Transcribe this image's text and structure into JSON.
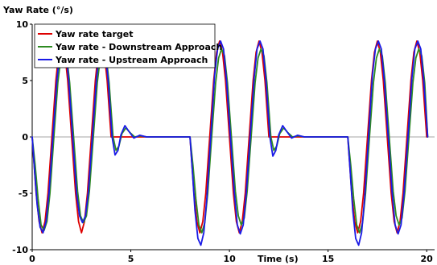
{
  "chart_data": {
    "type": "line",
    "title": "",
    "ylabel": "Yaw Rate (°/s)",
    "xlabel": "Time (s)",
    "xlim": [
      0,
      20.4
    ],
    "ylim": [
      -10,
      10
    ],
    "xticks": [
      0,
      5,
      10,
      15,
      20
    ],
    "yticks": [
      -10,
      -5,
      0,
      5,
      10
    ],
    "grid": false,
    "legend_position": "top-left",
    "series": [
      {
        "name": "Yaw rate target",
        "color": "#dd0000",
        "points": [
          [
            0,
            0
          ],
          [
            0.1,
            -2.5
          ],
          [
            0.2,
            -5
          ],
          [
            0.35,
            -7.5
          ],
          [
            0.5,
            -8.5
          ],
          [
            0.65,
            -7.5
          ],
          [
            0.8,
            -5
          ],
          [
            1.0,
            0
          ],
          [
            1.2,
            5
          ],
          [
            1.35,
            7.5
          ],
          [
            1.5,
            8.5
          ],
          [
            1.65,
            7.5
          ],
          [
            1.8,
            5
          ],
          [
            2.0,
            0
          ],
          [
            2.2,
            -5
          ],
          [
            2.35,
            -7.5
          ],
          [
            2.5,
            -8.5
          ],
          [
            2.65,
            -7.5
          ],
          [
            2.8,
            -5
          ],
          [
            3.0,
            0
          ],
          [
            3.2,
            5
          ],
          [
            3.35,
            7.5
          ],
          [
            3.5,
            8.5
          ],
          [
            3.65,
            7.5
          ],
          [
            3.8,
            5
          ],
          [
            4.0,
            0
          ],
          [
            4.3,
            0
          ],
          [
            8.0,
            0
          ],
          [
            8.1,
            -2.5
          ],
          [
            8.2,
            -5
          ],
          [
            8.35,
            -7.5
          ],
          [
            8.5,
            -8.5
          ],
          [
            8.65,
            -7.5
          ],
          [
            8.8,
            -5
          ],
          [
            9.0,
            0
          ],
          [
            9.2,
            5
          ],
          [
            9.35,
            7.5
          ],
          [
            9.5,
            8.5
          ],
          [
            9.65,
            7.5
          ],
          [
            9.8,
            5
          ],
          [
            10.0,
            0
          ],
          [
            10.2,
            -5
          ],
          [
            10.35,
            -7.5
          ],
          [
            10.5,
            -8.5
          ],
          [
            10.65,
            -7.5
          ],
          [
            10.8,
            -5
          ],
          [
            11.0,
            0
          ],
          [
            11.2,
            5
          ],
          [
            11.35,
            7.5
          ],
          [
            11.5,
            8.5
          ],
          [
            11.65,
            7.5
          ],
          [
            11.8,
            5
          ],
          [
            12.0,
            0
          ],
          [
            12.3,
            0
          ],
          [
            16.0,
            0
          ],
          [
            16.1,
            -2.5
          ],
          [
            16.2,
            -5
          ],
          [
            16.35,
            -7.5
          ],
          [
            16.5,
            -8.5
          ],
          [
            16.65,
            -7.5
          ],
          [
            16.8,
            -5
          ],
          [
            17.0,
            0
          ],
          [
            17.2,
            5
          ],
          [
            17.35,
            7.5
          ],
          [
            17.5,
            8.5
          ],
          [
            17.65,
            7.5
          ],
          [
            17.8,
            5
          ],
          [
            18.0,
            0
          ],
          [
            18.2,
            -5
          ],
          [
            18.35,
            -7.5
          ],
          [
            18.5,
            -8.5
          ],
          [
            18.65,
            -7.5
          ],
          [
            18.8,
            -5
          ],
          [
            19.0,
            0
          ],
          [
            19.2,
            5
          ],
          [
            19.35,
            7.5
          ],
          [
            19.5,
            8.5
          ],
          [
            19.65,
            7.5
          ],
          [
            19.8,
            5
          ],
          [
            20.0,
            0
          ]
        ]
      },
      {
        "name": "Yaw rate - Downstream Approach",
        "color": "#2e8b22",
        "points": [
          [
            0,
            0
          ],
          [
            0.15,
            -2.5
          ],
          [
            0.3,
            -5.5
          ],
          [
            0.45,
            -7.8
          ],
          [
            0.6,
            -8.3
          ],
          [
            0.75,
            -7.5
          ],
          [
            0.9,
            -5
          ],
          [
            1.1,
            0
          ],
          [
            1.3,
            4.8
          ],
          [
            1.45,
            7
          ],
          [
            1.6,
            7.8
          ],
          [
            1.75,
            7.2
          ],
          [
            1.9,
            4.8
          ],
          [
            2.1,
            0
          ],
          [
            2.3,
            -4.8
          ],
          [
            2.45,
            -7
          ],
          [
            2.6,
            -7.6
          ],
          [
            2.75,
            -7
          ],
          [
            2.9,
            -4.8
          ],
          [
            3.1,
            0
          ],
          [
            3.3,
            4.8
          ],
          [
            3.45,
            7
          ],
          [
            3.6,
            7.8
          ],
          [
            3.75,
            7.2
          ],
          [
            3.9,
            4.8
          ],
          [
            4.1,
            0
          ],
          [
            4.25,
            -1.2
          ],
          [
            4.4,
            -0.8
          ],
          [
            4.55,
            0.3
          ],
          [
            4.75,
            0.8
          ],
          [
            4.95,
            0.4
          ],
          [
            5.2,
            0
          ],
          [
            5.5,
            0.1
          ],
          [
            5.8,
            0
          ],
          [
            8.0,
            0
          ],
          [
            8.15,
            -2.5
          ],
          [
            8.3,
            -5.5
          ],
          [
            8.45,
            -7.8
          ],
          [
            8.6,
            -8.5
          ],
          [
            8.75,
            -7.6
          ],
          [
            8.9,
            -5
          ],
          [
            9.1,
            0
          ],
          [
            9.3,
            4.8
          ],
          [
            9.45,
            7
          ],
          [
            9.6,
            7.8
          ],
          [
            9.75,
            7.2
          ],
          [
            9.9,
            4.8
          ],
          [
            10.1,
            0
          ],
          [
            10.3,
            -4.8
          ],
          [
            10.45,
            -7
          ],
          [
            10.6,
            -7.8
          ],
          [
            10.75,
            -7.2
          ],
          [
            10.9,
            -4.8
          ],
          [
            11.1,
            0
          ],
          [
            11.3,
            4.8
          ],
          [
            11.45,
            7
          ],
          [
            11.6,
            7.8
          ],
          [
            11.75,
            7.2
          ],
          [
            11.9,
            4.8
          ],
          [
            12.1,
            0
          ],
          [
            12.25,
            -1.2
          ],
          [
            12.4,
            -0.8
          ],
          [
            12.55,
            0.3
          ],
          [
            12.75,
            0.8
          ],
          [
            12.95,
            0.4
          ],
          [
            13.2,
            0
          ],
          [
            13.5,
            0.1
          ],
          [
            13.8,
            0
          ],
          [
            16.0,
            0
          ],
          [
            16.15,
            -2.5
          ],
          [
            16.3,
            -5.5
          ],
          [
            16.45,
            -7.8
          ],
          [
            16.6,
            -8.5
          ],
          [
            16.75,
            -7.6
          ],
          [
            16.9,
            -5
          ],
          [
            17.1,
            0
          ],
          [
            17.3,
            4.8
          ],
          [
            17.45,
            7
          ],
          [
            17.6,
            7.8
          ],
          [
            17.75,
            7.2
          ],
          [
            17.9,
            4.8
          ],
          [
            18.1,
            0
          ],
          [
            18.3,
            -4.8
          ],
          [
            18.45,
            -7
          ],
          [
            18.6,
            -7.8
          ],
          [
            18.75,
            -7.2
          ],
          [
            18.9,
            -4.8
          ],
          [
            19.1,
            0
          ],
          [
            19.3,
            4.8
          ],
          [
            19.45,
            7
          ],
          [
            19.6,
            7.8
          ],
          [
            19.75,
            7.2
          ],
          [
            19.9,
            4.8
          ],
          [
            20.05,
            0
          ]
        ]
      },
      {
        "name": "Yaw rate - Upstream Approach",
        "color": "#1a1ae6",
        "points": [
          [
            0,
            0
          ],
          [
            0.12,
            -3
          ],
          [
            0.25,
            -6
          ],
          [
            0.4,
            -8
          ],
          [
            0.55,
            -8.5
          ],
          [
            0.7,
            -7.5
          ],
          [
            0.85,
            -5
          ],
          [
            1.05,
            0
          ],
          [
            1.25,
            5
          ],
          [
            1.4,
            7.5
          ],
          [
            1.55,
            8.4
          ],
          [
            1.7,
            7.8
          ],
          [
            1.85,
            5
          ],
          [
            2.05,
            0
          ],
          [
            2.25,
            -5
          ],
          [
            2.4,
            -7
          ],
          [
            2.55,
            -7.6
          ],
          [
            2.7,
            -7
          ],
          [
            2.85,
            -4.8
          ],
          [
            3.05,
            0
          ],
          [
            3.25,
            5
          ],
          [
            3.4,
            7.5
          ],
          [
            3.55,
            8.4
          ],
          [
            3.7,
            7.8
          ],
          [
            3.85,
            5
          ],
          [
            4.05,
            0
          ],
          [
            4.2,
            -1.6
          ],
          [
            4.35,
            -1.2
          ],
          [
            4.5,
            0.2
          ],
          [
            4.7,
            1.0
          ],
          [
            4.9,
            0.5
          ],
          [
            5.15,
            -0.1
          ],
          [
            5.45,
            0.15
          ],
          [
            5.8,
            0
          ],
          [
            8.0,
            0
          ],
          [
            8.12,
            -3
          ],
          [
            8.25,
            -6.5
          ],
          [
            8.4,
            -9
          ],
          [
            8.55,
            -9.6
          ],
          [
            8.7,
            -8.5
          ],
          [
            8.85,
            -5.5
          ],
          [
            9.05,
            0
          ],
          [
            9.25,
            5.5
          ],
          [
            9.4,
            7.8
          ],
          [
            9.55,
            8.5
          ],
          [
            9.7,
            7.8
          ],
          [
            9.85,
            5
          ],
          [
            10.05,
            0
          ],
          [
            10.25,
            -5
          ],
          [
            10.4,
            -7.8
          ],
          [
            10.55,
            -8.6
          ],
          [
            10.7,
            -7.8
          ],
          [
            10.85,
            -5
          ],
          [
            11.05,
            0
          ],
          [
            11.25,
            5.2
          ],
          [
            11.4,
            7.8
          ],
          [
            11.55,
            8.5
          ],
          [
            11.7,
            7.8
          ],
          [
            11.85,
            5
          ],
          [
            12.05,
            0
          ],
          [
            12.2,
            -1.7
          ],
          [
            12.35,
            -1.2
          ],
          [
            12.5,
            0.2
          ],
          [
            12.7,
            1.0
          ],
          [
            12.9,
            0.5
          ],
          [
            13.15,
            -0.1
          ],
          [
            13.45,
            0.15
          ],
          [
            13.8,
            0
          ],
          [
            16.0,
            0
          ],
          [
            16.12,
            -3
          ],
          [
            16.25,
            -6.5
          ],
          [
            16.4,
            -9
          ],
          [
            16.55,
            -9.6
          ],
          [
            16.7,
            -8.5
          ],
          [
            16.85,
            -5.5
          ],
          [
            17.05,
            0
          ],
          [
            17.25,
            5.5
          ],
          [
            17.4,
            7.8
          ],
          [
            17.55,
            8.5
          ],
          [
            17.7,
            7.8
          ],
          [
            17.85,
            5
          ],
          [
            18.05,
            0
          ],
          [
            18.25,
            -5
          ],
          [
            18.4,
            -7.8
          ],
          [
            18.55,
            -8.6
          ],
          [
            18.7,
            -7.8
          ],
          [
            18.85,
            -5
          ],
          [
            19.05,
            0
          ],
          [
            19.25,
            5.2
          ],
          [
            19.4,
            7.8
          ],
          [
            19.55,
            8.5
          ],
          [
            19.7,
            7.8
          ],
          [
            19.85,
            5
          ],
          [
            20.05,
            0
          ]
        ]
      }
    ]
  }
}
